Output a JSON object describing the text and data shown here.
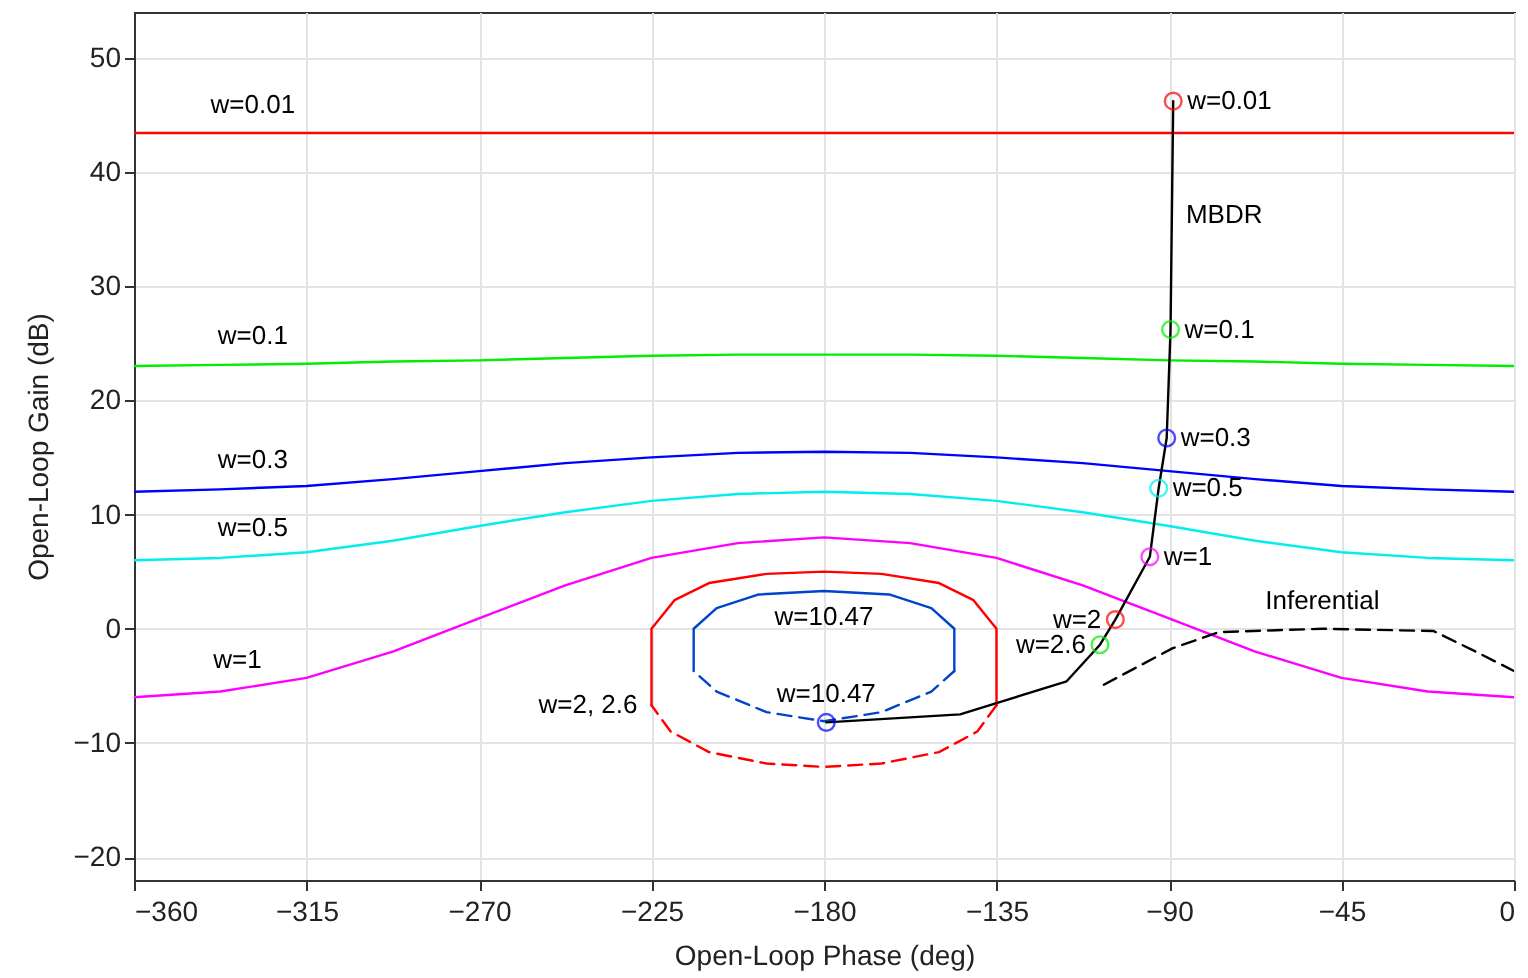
{
  "chart_data": {
    "type": "line",
    "xlabel": "Open-Loop Phase (deg)",
    "ylabel": "Open-Loop Gain (dB)",
    "xlim": [
      -360,
      0
    ],
    "xticks": [
      -360,
      -315,
      -270,
      -225,
      -180,
      -135,
      -90,
      -45,
      0
    ],
    "ylim": [
      -22,
      54
    ],
    "yticks": [
      -20,
      -10,
      0,
      10,
      20,
      30,
      40,
      50
    ],
    "grid": true,
    "series": [
      {
        "color": "#ff0000",
        "line_style": "solid",
        "x": [
          -360,
          -270,
          -180,
          -90,
          0
        ],
        "values": [
          43.4,
          43.4,
          43.4,
          43.4,
          43.4
        ]
      },
      {
        "color": "#00ee00",
        "line_style": "solid",
        "x": [
          -360,
          -337.5,
          -315,
          -292.5,
          -270,
          -247.5,
          -225,
          -202.5,
          -180,
          -157.5,
          -135,
          -112.5,
          -90,
          -67.5,
          -45,
          -22.5,
          0
        ],
        "values": [
          23,
          23.1,
          23.2,
          23.4,
          23.5,
          23.7,
          23.9,
          24,
          24,
          24,
          23.9,
          23.7,
          23.5,
          23.4,
          23.2,
          23.1,
          23
        ]
      },
      {
        "color": "#0000ff",
        "line_style": "solid",
        "x": [
          -360,
          -337.5,
          -315,
          -292.5,
          -270,
          -247.5,
          -225,
          -202.5,
          -180,
          -157.5,
          -135,
          -112.5,
          -90,
          -67.5,
          -45,
          -22.5,
          0
        ],
        "values": [
          12,
          12.2,
          12.5,
          13.1,
          13.8,
          14.5,
          15,
          15.4,
          15.5,
          15.4,
          15,
          14.5,
          13.8,
          13.1,
          12.5,
          12.2,
          12
        ]
      },
      {
        "color": "#00eeee",
        "line_style": "solid",
        "x": [
          -360,
          -337.5,
          -315,
          -292.5,
          -270,
          -247.5,
          -225,
          -202.5,
          -180,
          -157.5,
          -135,
          -112.5,
          -90,
          -67.5,
          -45,
          -22.5,
          0
        ],
        "values": [
          6,
          6.2,
          6.7,
          7.7,
          9,
          10.2,
          11.2,
          11.8,
          12,
          11.8,
          11.2,
          10.2,
          9,
          7.7,
          6.7,
          6.2,
          6
        ]
      },
      {
        "color": "#ff00ff",
        "line_style": "solid",
        "x": [
          -360,
          -337.5,
          -315,
          -292.5,
          -270,
          -247.5,
          -225,
          -202.5,
          -180,
          -157.5,
          -135,
          -112.5,
          -90,
          -67.5,
          -45,
          -22.5,
          0
        ],
        "values": [
          -6,
          -5.5,
          -4.3,
          -2,
          0.9,
          3.8,
          6.2,
          7.5,
          8,
          7.5,
          6.2,
          3.8,
          0.9,
          -2,
          -4.3,
          -5.5,
          -6
        ]
      },
      {
        "color": "#ff0000",
        "line_style": "solid",
        "x": [
          -225,
          -225,
          -219,
          -210,
          -195,
          -180,
          -165,
          -150,
          -141,
          -135,
          -135
        ],
        "values": [
          -6.7,
          0,
          2.5,
          4,
          4.8,
          5,
          4.8,
          4,
          2.5,
          0,
          -6.7
        ]
      },
      {
        "color": "#ff0000",
        "line_style": "dashed",
        "x": [
          -135,
          -140,
          -150,
          -165,
          -180,
          -195,
          -210,
          -220,
          -225
        ],
        "values": [
          -6.7,
          -9,
          -10.8,
          -11.8,
          -12.1,
          -11.8,
          -10.8,
          -9,
          -6.7
        ]
      },
      {
        "color": "#0044cc",
        "line_style": "solid",
        "x": [
          -214,
          -214,
          -208,
          -197,
          -180,
          -163,
          -152,
          -146,
          -146
        ],
        "values": [
          -3.7,
          0,
          1.8,
          3,
          3.3,
          3,
          1.8,
          0,
          -3.7
        ]
      },
      {
        "color": "#0044cc",
        "line_style": "dashed",
        "x": [
          -146,
          -152,
          -165,
          -180,
          -195,
          -208,
          -214
        ],
        "values": [
          -3.7,
          -5.5,
          -7.3,
          -8.1,
          -7.3,
          -5.5,
          -3.7
        ]
      },
      {
        "color": "#000000",
        "line_style": "solid",
        "x": [
          -179.4,
          -144.5,
          -116.7,
          -108,
          -104,
          -95,
          -92.7,
          -90.6,
          -89.6,
          -88.9
        ],
        "values": [
          -8.2,
          -7.5,
          -4.6,
          -1.4,
          0.8,
          6.3,
          12.3,
          16.7,
          26.2,
          46.2
        ]
      },
      {
        "color": "#000000",
        "line_style": "dashed",
        "x": [
          -107,
          -89,
          -77,
          -50,
          -21,
          -10,
          0
        ],
        "values": [
          -4.9,
          -1.7,
          -0.3,
          0,
          -0.2,
          -2,
          -3.7
        ]
      },
      {
        "type": "scatter",
        "marker": "circle",
        "x": [
          -179.4,
          -108,
          -104,
          -95,
          -92.7,
          -90.6,
          -89.6,
          -88.9
        ],
        "values": [
          -8.2,
          -1.4,
          0.8,
          6.3,
          12.3,
          16.7,
          26.2,
          46.2
        ],
        "colors": [
          "#0000ff",
          "#00ee00",
          "#ff0000",
          "#ff00ff",
          "#00eeee",
          "#0000ff",
          "#00ee00",
          "#ff0000"
        ]
      }
    ],
    "annotations": [
      {
        "text": "w=0.01",
        "x": -329,
        "y": 43.4
      },
      {
        "text": "w=0.01",
        "x": -88.9,
        "y": 46.2
      },
      {
        "text": "MBDR",
        "x": -89.25,
        "y": 36.2
      },
      {
        "text": "w=0.1",
        "x": -329,
        "y": 23.15
      },
      {
        "text": "w=0.1",
        "x": -89.6,
        "y": 26.2
      },
      {
        "text": "w=0.3",
        "x": -329,
        "y": 12.3
      },
      {
        "text": "w=0.3",
        "x": -90.6,
        "y": 16.7
      },
      {
        "text": "w=0.5",
        "x": -329,
        "y": 6.4
      },
      {
        "text": "w=0.5",
        "x": -92.7,
        "y": 12.3
      },
      {
        "text": "w=1",
        "x": -333,
        "y": -5.2
      },
      {
        "text": "w=1",
        "x": -95,
        "y": 6.3
      },
      {
        "text": "w=2",
        "x": -104,
        "y": 0.8
      },
      {
        "text": "w=2.6",
        "x": -108,
        "y": -1.4
      },
      {
        "text": "w=2, 2.6",
        "x": -225,
        "y": -6.7
      },
      {
        "text": "w=10.47",
        "x": -180,
        "y": 3.3
      },
      {
        "text": "w=10.47",
        "x": -179.4,
        "y": -8.2
      },
      {
        "text": "Inferential",
        "x": -50,
        "y": 0
      }
    ]
  }
}
